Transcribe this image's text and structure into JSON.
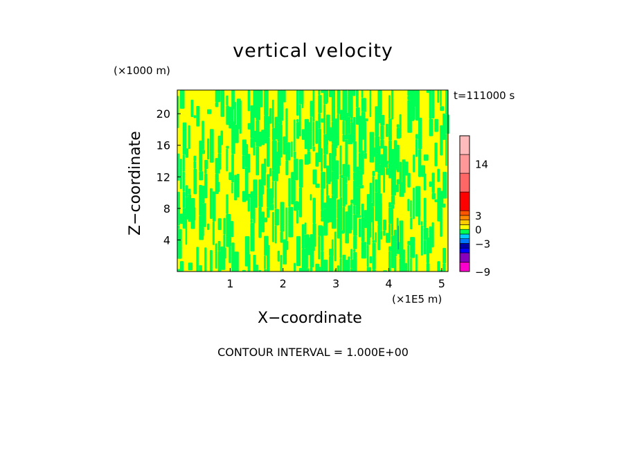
{
  "chart_data": {
    "type": "heatmap",
    "title": "vertical velocity",
    "xlabel": "X−coordinate",
    "ylabel": "Z−coordinate",
    "x_unit": "(×1E5 m)",
    "y_unit": "(×1000 m)",
    "time_label": "t=111000 s",
    "xlim": [
      0,
      5.12
    ],
    "ylim": [
      0,
      23
    ],
    "x_ticks": [
      1,
      2,
      3,
      4,
      5
    ],
    "y_ticks": [
      4,
      8,
      12,
      16,
      20
    ],
    "field_colors": {
      "low": "#ffff00",
      "high": "#00ff55"
    },
    "colorbar": {
      "min": -9,
      "max": 20,
      "tick_labels": [
        "14",
        "3",
        "0",
        "−3",
        "−9"
      ],
      "tick_values": [
        14,
        3,
        0,
        -3,
        -9
      ],
      "segments": [
        {
          "from": -9,
          "to": -7,
          "color": "#ff00cc"
        },
        {
          "from": -7,
          "to": -5,
          "color": "#8800bb"
        },
        {
          "from": -5,
          "to": -4,
          "color": "#0000ff"
        },
        {
          "from": -4,
          "to": -3,
          "color": "#0000aa"
        },
        {
          "from": -3,
          "to": -2,
          "color": "#0077ff"
        },
        {
          "from": -2,
          "to": -1,
          "color": "#00ccff"
        },
        {
          "from": -1,
          "to": 0,
          "color": "#00ff55"
        },
        {
          "from": 0,
          "to": 1,
          "color": "#ffff00"
        },
        {
          "from": 1,
          "to": 2,
          "color": "#ffcc00"
        },
        {
          "from": 2,
          "to": 3,
          "color": "#ff8800"
        },
        {
          "from": 3,
          "to": 4,
          "color": "#ff5500"
        },
        {
          "from": 4,
          "to": 8,
          "color": "#ff0000"
        },
        {
          "from": 8,
          "to": 12,
          "color": "#ff6666"
        },
        {
          "from": 12,
          "to": 16,
          "color": "#ff9999"
        },
        {
          "from": 16,
          "to": 20,
          "color": "#ffbbbb"
        }
      ]
    }
  },
  "footer": {
    "contour_interval": "CONTOUR INTERVAL = 1.000E+00"
  }
}
